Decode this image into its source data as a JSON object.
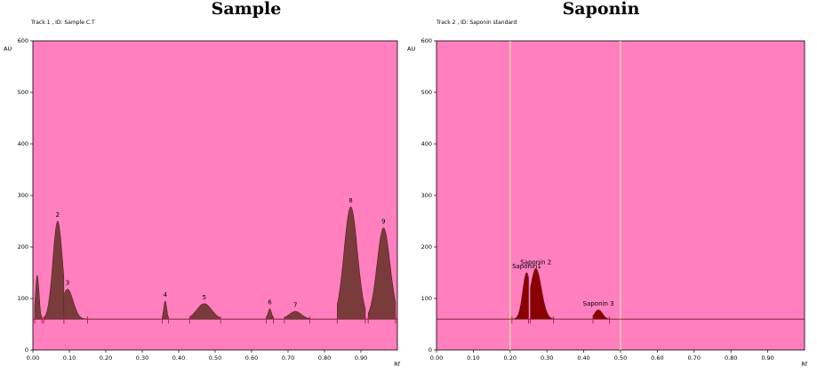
{
  "chart_data": [
    {
      "type": "area",
      "title": "Sample",
      "track_label": "Track  1 , ID: Sample C.T",
      "ylabel": "AU",
      "xlabel": "Rf",
      "xlim": [
        0.0,
        1.0
      ],
      "ylim": [
        0,
        600
      ],
      "x_ticks": [
        "0.00",
        "0.10",
        "0.20",
        "0.30",
        "0.40",
        "0.50",
        "0.60",
        "0.70",
        "0.80",
        "0.90"
      ],
      "y_ticks": [
        "0",
        "100",
        "200",
        "300",
        "400",
        "500",
        "600"
      ],
      "baseline": 60,
      "colors": {
        "background": "#ff7fbf",
        "peak_fill": "#7a3b3b",
        "trace": "#5a2020",
        "marker": "#c0105a"
      },
      "peaks": [
        {
          "label": "",
          "rf": 0.012,
          "au": 145,
          "start": 0.005,
          "end": 0.025
        },
        {
          "label": "2",
          "rf": 0.068,
          "au": 250,
          "start": 0.03,
          "end": 0.085
        },
        {
          "label": "3",
          "rf": 0.095,
          "au": 118,
          "start": 0.085,
          "end": 0.15
        },
        {
          "label": "4",
          "rf": 0.363,
          "au": 95,
          "start": 0.355,
          "end": 0.372
        },
        {
          "label": "5",
          "rf": 0.47,
          "au": 90,
          "start": 0.43,
          "end": 0.515
        },
        {
          "label": "6",
          "rf": 0.65,
          "au": 80,
          "start": 0.64,
          "end": 0.66
        },
        {
          "label": "7",
          "rf": 0.72,
          "au": 75,
          "start": 0.69,
          "end": 0.76
        },
        {
          "label": "8",
          "rf": 0.872,
          "au": 278,
          "start": 0.835,
          "end": 0.912
        },
        {
          "label": "9",
          "rf": 0.962,
          "au": 237,
          "start": 0.92,
          "end": 0.995
        }
      ]
    },
    {
      "type": "area",
      "title": "Saponin",
      "track_label": "Track  2 , ID: Saponin standard",
      "ylabel": "AU",
      "xlabel": "Rf",
      "xlim": [
        0.0,
        1.0
      ],
      "ylim": [
        0,
        600
      ],
      "x_ticks": [
        "0.00",
        "0.10",
        "0.20",
        "0.30",
        "0.40",
        "0.50",
        "0.60",
        "0.70",
        "0.80",
        "0.90"
      ],
      "y_ticks": [
        "0",
        "100",
        "200",
        "300",
        "400",
        "500",
        "600"
      ],
      "baseline": 60,
      "vlines": [
        0.2,
        0.5
      ],
      "colors": {
        "background": "#ff7fbf",
        "peak_fill": "#8b0000",
        "trace": "#5a2020",
        "marker": "#c0105a"
      },
      "peaks": [
        {
          "label": "Saponin1",
          "rf": 0.245,
          "au": 150,
          "start": 0.205,
          "end": 0.25
        },
        {
          "label": "Saponin  2",
          "rf": 0.27,
          "au": 158,
          "start": 0.255,
          "end": 0.318
        },
        {
          "label": "Saponin 3",
          "rf": 0.44,
          "au": 78,
          "start": 0.425,
          "end": 0.47
        }
      ]
    }
  ]
}
